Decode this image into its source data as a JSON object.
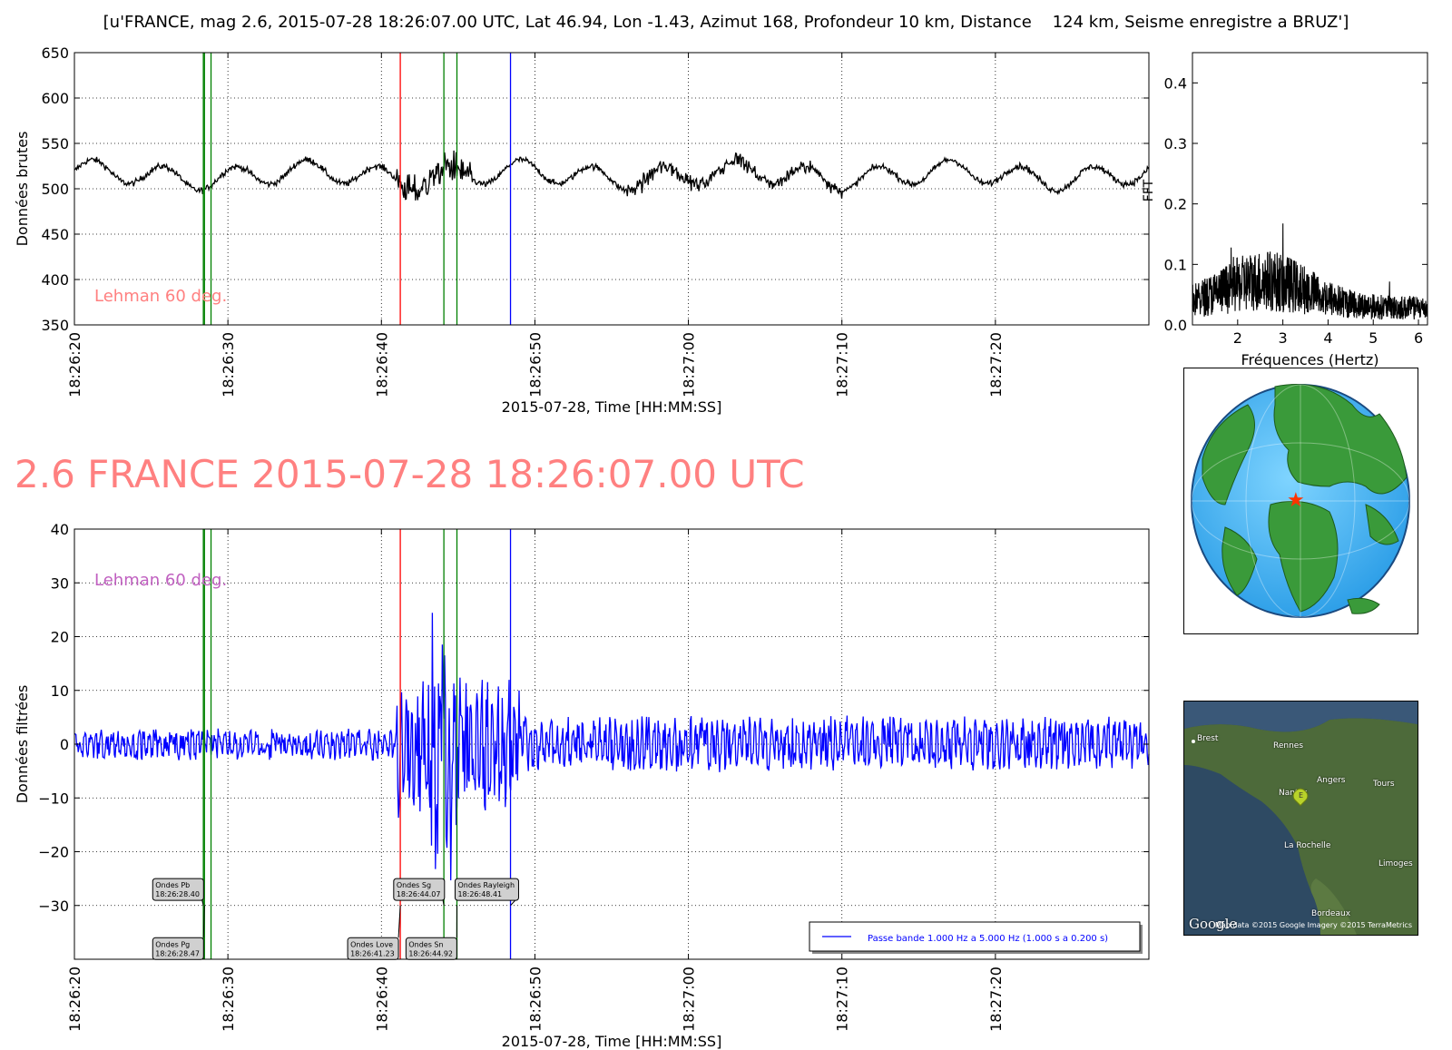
{
  "header": {
    "title": "[u'FRANCE, mag 2.6, 2015-07-28 18:26:07.00 UTC, Lat 46.94, Lon -1.43, Azimut 168, Profondeur 10 km, Distance    124 km, Seisme enregistre a BRUZ']",
    "big_title": "2.6 FRANCE 2015-07-28 18:26:07.00 UTC"
  },
  "colors": {
    "raw_trace": "#000000",
    "filtered_trace": "#0000ff",
    "red_marker": "#ff0000",
    "green_marker": "#008000",
    "blue_marker": "#0000ff",
    "lehman_top": "#ff8080",
    "lehman_bottom": "#c060c0",
    "big_title": "#ff8080"
  },
  "chart_data": [
    {
      "id": "raw",
      "type": "line",
      "ylabel": "Données brutes",
      "xlabel": "2015-07-28, Time [HH:MM:SS]",
      "xlim": [
        0,
        70
      ],
      "ylim": [
        350,
        650
      ],
      "yticks": [
        350,
        400,
        450,
        500,
        550,
        600,
        650
      ],
      "ytick_labels": [
        "350",
        "400",
        "450",
        "500",
        "550",
        "600",
        "650"
      ],
      "xticks": [
        0,
        10,
        20,
        30,
        40,
        50,
        60
      ],
      "xtick_labels": [
        "18:26:20",
        "18:26:30",
        "18:26:40",
        "18:26:50",
        "18:27:00",
        "18:27:10",
        "18:27:20"
      ],
      "grid": true,
      "annotation": "Lehman 60 deg.",
      "markers": [
        {
          "t": 8.4,
          "color": "green"
        },
        {
          "t": 8.47,
          "color": "green"
        },
        {
          "t": 8.9,
          "color": "green"
        },
        {
          "t": 21.23,
          "color": "red"
        },
        {
          "t": 24.07,
          "color": "green"
        },
        {
          "t": 24.92,
          "color": "green"
        },
        {
          "t": 28.41,
          "color": "blue"
        }
      ],
      "trace": {
        "baseline": 515,
        "points": 1400
      }
    },
    {
      "id": "fft",
      "type": "line",
      "xlabel": "Fréquences (Hertz)",
      "ylabel": "FFT",
      "xlim": [
        1.0,
        6.2
      ],
      "ylim": [
        0.0,
        0.45
      ],
      "xticks": [
        2,
        3,
        4,
        5,
        6
      ],
      "xtick_labels": [
        "2",
        "3",
        "4",
        "5",
        "6"
      ],
      "yticks": [
        0.0,
        0.1,
        0.2,
        0.3,
        0.4
      ],
      "ytick_labels": [
        "0.0",
        "0.1",
        "0.2",
        "0.3",
        "0.4"
      ],
      "trace": {
        "points": 900
      }
    },
    {
      "id": "filtered",
      "type": "line",
      "ylabel": "Données filtrées",
      "xlabel": "2015-07-28, Time [HH:MM:SS]",
      "xlim": [
        0,
        70
      ],
      "ylim": [
        -40,
        40
      ],
      "yticks": [
        -30,
        -20,
        -10,
        0,
        10,
        20,
        30,
        40
      ],
      "ytick_labels": [
        "−30",
        "−20",
        "−10",
        "0",
        "10",
        "20",
        "30",
        "40"
      ],
      "xticks": [
        0,
        10,
        20,
        30,
        40,
        50,
        60
      ],
      "xtick_labels": [
        "18:26:20",
        "18:26:30",
        "18:26:40",
        "18:26:50",
        "18:27:00",
        "18:27:10",
        "18:27:20"
      ],
      "grid": true,
      "annotation": "Lehman 60 deg.",
      "markers": [
        {
          "t": 8.4,
          "color": "green"
        },
        {
          "t": 8.47,
          "color": "green"
        },
        {
          "t": 8.9,
          "color": "green"
        },
        {
          "t": 21.23,
          "color": "red"
        },
        {
          "t": 24.07,
          "color": "green"
        },
        {
          "t": 24.92,
          "color": "green"
        },
        {
          "t": 28.41,
          "color": "blue"
        }
      ],
      "phases": [
        {
          "label": "Ondes Pb",
          "time": "18:26:28.40",
          "t": 8.4,
          "y": -30,
          "box_t": 5.1,
          "box_y": -25
        },
        {
          "label": "Ondes Pg",
          "time": "18:26:28.47",
          "t": 8.47,
          "y": -30,
          "box_t": 5.1,
          "box_y": -36
        },
        {
          "label": "Ondes Love",
          "time": "18:26:41.23",
          "t": 21.23,
          "y": -30,
          "box_t": 17.8,
          "box_y": -36
        },
        {
          "label": "Ondes Sg",
          "time": "18:26:44.07",
          "t": 24.07,
          "y": -30,
          "box_t": 20.8,
          "box_y": -25
        },
        {
          "label": "Ondes Sn",
          "time": "18:26:44.92",
          "t": 24.92,
          "y": -30,
          "box_t": 21.6,
          "box_y": -36
        },
        {
          "label": "Ondes Rayleigh",
          "time": "18:26:48.41",
          "t": 28.41,
          "y": -30,
          "box_t": 24.8,
          "box_y": -25
        }
      ],
      "legend": {
        "label": "Passe bande 1.000 Hz a 5.000 Hz (1.000 s a 0.200 s)",
        "loc": "lower-right"
      },
      "trace": {
        "points": 1400
      }
    }
  ],
  "map": {
    "cities": [
      {
        "name": "Brest"
      },
      {
        "name": "Rennes"
      },
      {
        "name": "Angers"
      },
      {
        "name": "Tours"
      },
      {
        "name": "Nantes"
      },
      {
        "name": "La Rochelle"
      },
      {
        "name": "Limoges"
      },
      {
        "name": "Bordeaux"
      }
    ],
    "pin_letter": "E",
    "google": "Google",
    "credit": "Map data ©2015 Google  Imagery ©2015 TerraMetrics"
  }
}
